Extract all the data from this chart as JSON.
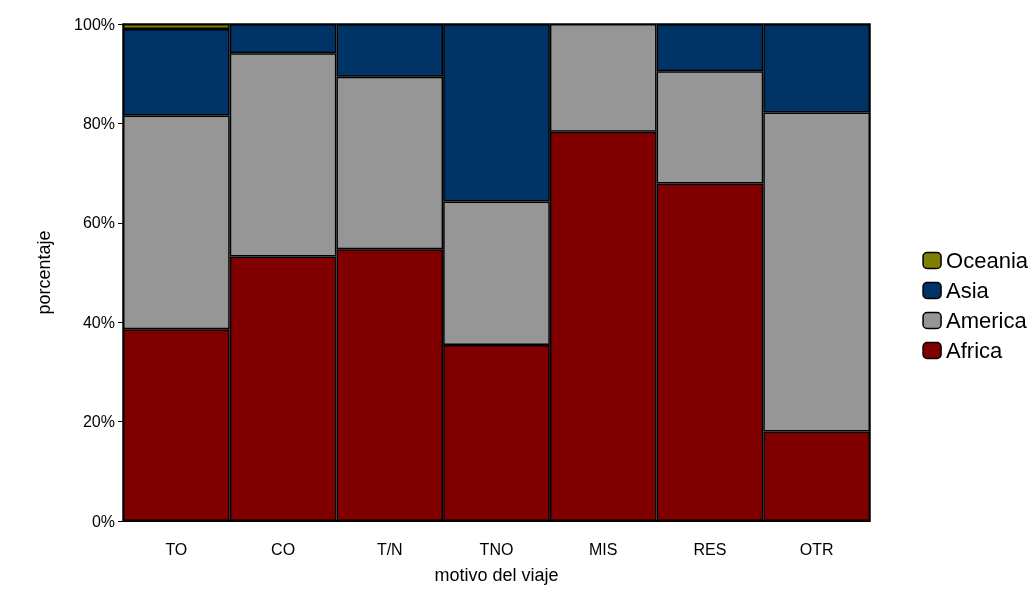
{
  "chart_data": {
    "type": "bar",
    "stacked": true,
    "xlabel": "motivo del viaje",
    "ylabel": "porcentaje",
    "categories": [
      "TO",
      "CO",
      "T/N",
      "TNO",
      "MIS",
      "RES",
      "OTR"
    ],
    "series": [
      {
        "name": "Africa",
        "color": "#800000",
        "values": [
          38.6,
          53.2,
          54.7,
          35.4,
          78.3,
          67.9,
          18.0
        ]
      },
      {
        "name": "America",
        "color": "#969696",
        "values": [
          43.0,
          40.9,
          34.7,
          28.9,
          21.7,
          22.6,
          64.2
        ]
      },
      {
        "name": "Asia",
        "color": "#003366",
        "values": [
          17.4,
          5.9,
          10.6,
          35.7,
          0,
          9.5,
          17.8
        ]
      },
      {
        "name": "Oceania",
        "color": "#808000",
        "values": [
          1.0,
          0,
          0,
          0,
          0,
          0,
          0
        ]
      }
    ],
    "ylim": [
      0,
      100
    ],
    "yticks": [
      {
        "value": 0,
        "label": "0%"
      },
      {
        "value": 20,
        "label": "20%"
      },
      {
        "value": 40,
        "label": "40%"
      },
      {
        "value": 60,
        "label": "60%"
      },
      {
        "value": 80,
        "label": "80%"
      },
      {
        "value": 100,
        "label": "100%"
      }
    ],
    "grid": false,
    "legend": "right"
  }
}
